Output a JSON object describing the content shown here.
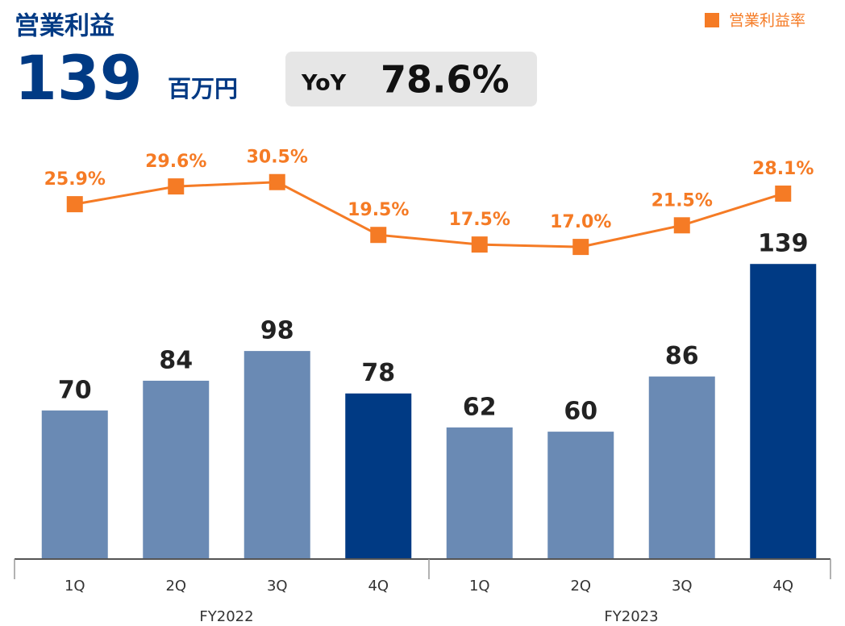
{
  "chart_data": {
    "type": "bar",
    "title": "営業利益",
    "headline_value": 139,
    "headline_unit": "百万円",
    "yoy_label": "YoY",
    "yoy_value": 78.6,
    "yoy_value_label": "78.6%",
    "categories": [
      "1Q",
      "2Q",
      "3Q",
      "4Q",
      "1Q",
      "2Q",
      "3Q",
      "4Q"
    ],
    "groups": [
      {
        "label": "FY2022",
        "size": 4
      },
      {
        "label": "FY2023",
        "size": 4
      }
    ],
    "values": [
      70,
      84,
      98,
      78,
      62,
      60,
      86,
      139
    ],
    "colors": [
      "#6a8ab4",
      "#6a8ab4",
      "#6a8ab4",
      "#003a84",
      "#6a8ab4",
      "#6a8ab4",
      "#6a8ab4",
      "#003a84"
    ],
    "ylim": [
      0,
      190
    ],
    "y2lim": [
      -48,
      36
    ],
    "legend": "top-right",
    "series": [
      {
        "name": "営業利益率",
        "type": "line",
        "axis": "y2",
        "color": "#f57b25",
        "values": [
          25.9,
          29.6,
          30.5,
          19.5,
          17.5,
          17.0,
          21.5,
          28.1
        ],
        "value_labels": [
          "25.9%",
          "29.6%",
          "30.5%",
          "19.5%",
          "17.5%",
          "17.0%",
          "21.5%",
          "28.1%"
        ]
      }
    ]
  }
}
